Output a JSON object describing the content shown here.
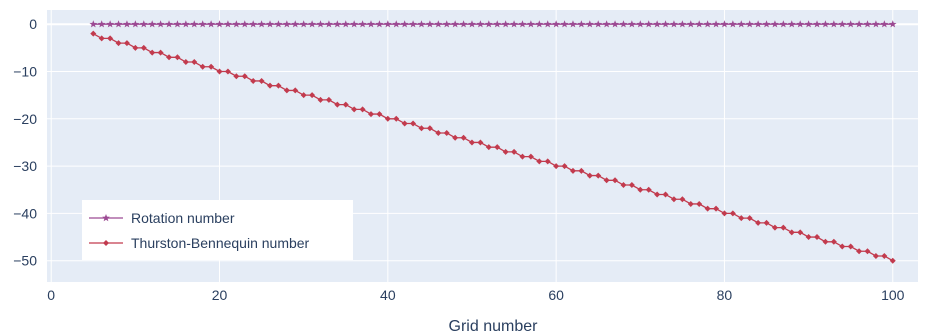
{
  "chart_data": {
    "type": "line",
    "title": "",
    "xlabel": "Grid number",
    "ylabel": "",
    "xlim": [
      -0.5,
      103
    ],
    "ylim": [
      -54.5,
      3
    ],
    "x_ticks": [
      0,
      20,
      40,
      60,
      80,
      100
    ],
    "y_ticks": [
      0,
      -10,
      -20,
      -30,
      -40,
      -50
    ],
    "x_tick_labels": [
      "0",
      "20",
      "40",
      "60",
      "80",
      "100"
    ],
    "y_tick_labels": [
      "0",
      "−10",
      "−20",
      "−30",
      "−40",
      "−50"
    ],
    "x_range": [
      5,
      100
    ],
    "grid": true,
    "legend_position": "bottom-left",
    "background_color": "#e5ecf6",
    "series": [
      {
        "name": "Rotation number",
        "color": "#9c4a93",
        "marker": "star",
        "x_start": 5,
        "x_end": 100,
        "constant_value": 0
      },
      {
        "name": "Thurston-Bennequin number",
        "color": "#c23b4e",
        "marker": "diamond",
        "x_start": 5,
        "x_end": 100,
        "formula": "-floor(x/2)"
      }
    ]
  }
}
